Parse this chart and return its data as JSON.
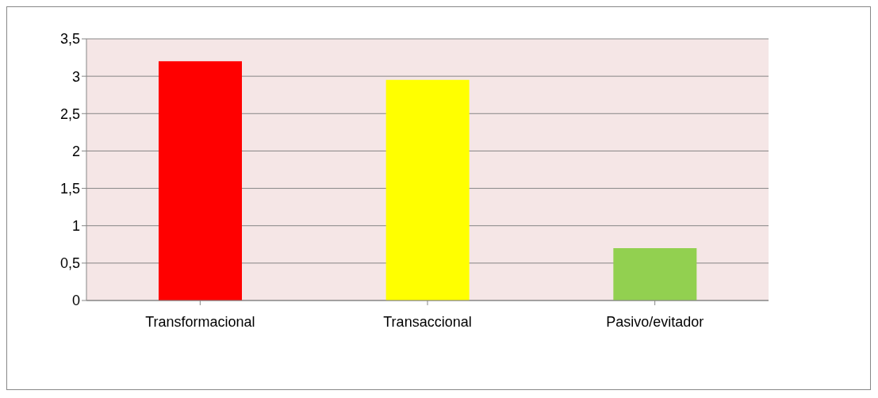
{
  "chart_data": {
    "type": "bar",
    "categories": [
      "Transformacional",
      "Transaccional",
      "Pasivo/evitador"
    ],
    "values": [
      3.2,
      2.95,
      0.7
    ],
    "colors": [
      "#ff0000",
      "#ffff00",
      "#92d050"
    ],
    "ylim": [
      0,
      3.5
    ],
    "yticks": [
      {
        "value": 0,
        "label": "0"
      },
      {
        "value": 0.5,
        "label": "0,5"
      },
      {
        "value": 1,
        "label": "1"
      },
      {
        "value": 1.5,
        "label": "1,5"
      },
      {
        "value": 2,
        "label": "2"
      },
      {
        "value": 2.5,
        "label": "2,5"
      },
      {
        "value": 3,
        "label": "3"
      },
      {
        "value": 3.5,
        "label": "3,5"
      }
    ],
    "grid": "y"
  }
}
